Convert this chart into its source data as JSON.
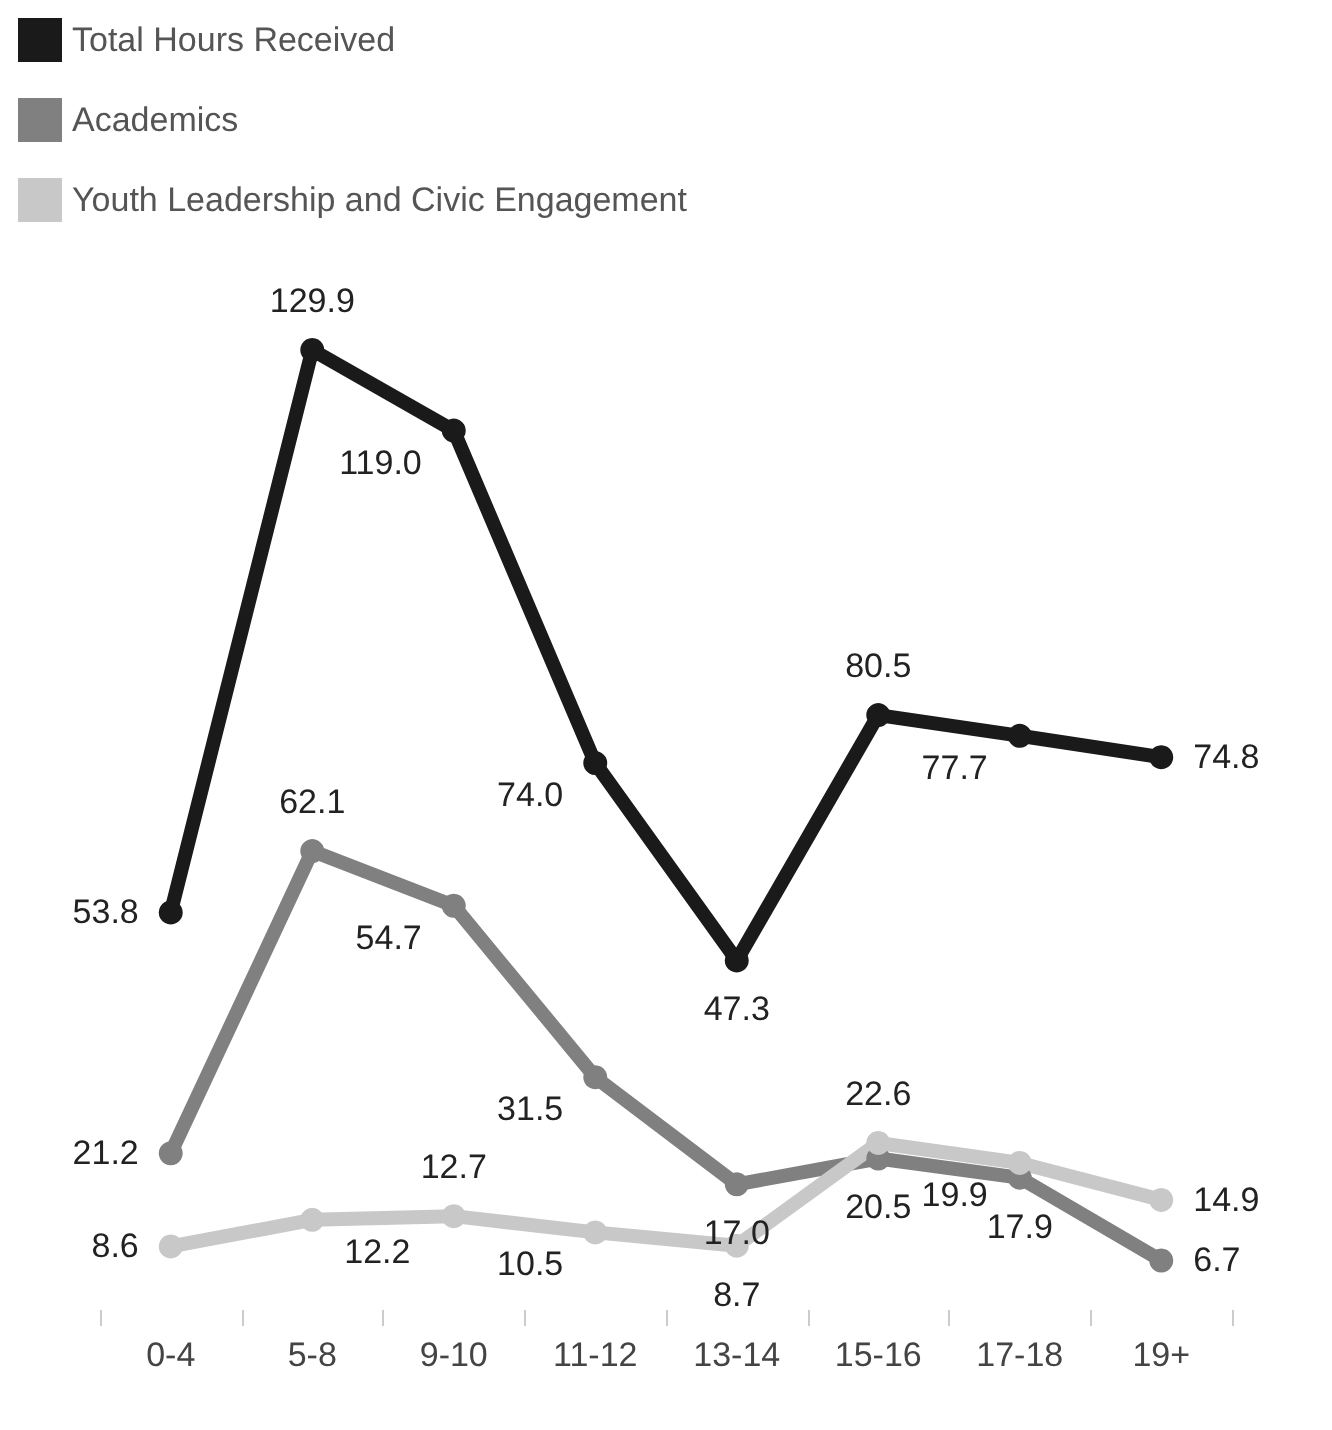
{
  "chart_data": {
    "type": "line",
    "categories": [
      "0-4",
      "5-8",
      "9-10",
      "11-12",
      "13-14",
      "15-16",
      "17-18",
      "19+"
    ],
    "series": [
      {
        "name": "Total Hours Received",
        "color": "#1a1a1a",
        "values": [
          53.8,
          129.9,
          119.0,
          74.0,
          47.3,
          80.5,
          77.7,
          74.8
        ],
        "value_labels": [
          "53.8",
          "129.9",
          "119.0",
          "74.0",
          "47.3",
          "80.5",
          "77.7",
          "74.8"
        ]
      },
      {
        "name": "Academics",
        "color": "#808080",
        "values": [
          21.2,
          62.1,
          54.7,
          31.5,
          17.0,
          20.5,
          17.9,
          6.7
        ],
        "value_labels": [
          "21.2",
          "62.1",
          "54.7",
          "31.5",
          "17.0",
          "20.5",
          "17.9",
          "6.7"
        ]
      },
      {
        "name": "Youth Leadership and Civic Engagement",
        "color": "#c8c8c8",
        "values": [
          8.6,
          12.2,
          12.7,
          10.5,
          8.7,
          22.6,
          19.9,
          14.9
        ],
        "value_labels": [
          "8.6",
          "12.2",
          "12.7",
          "10.5",
          "8.7",
          "22.6",
          "19.9",
          "14.9"
        ]
      }
    ],
    "data_labels": true,
    "legend": "top left",
    "marker": "circle",
    "line_style": "solid",
    "grid": false
  }
}
